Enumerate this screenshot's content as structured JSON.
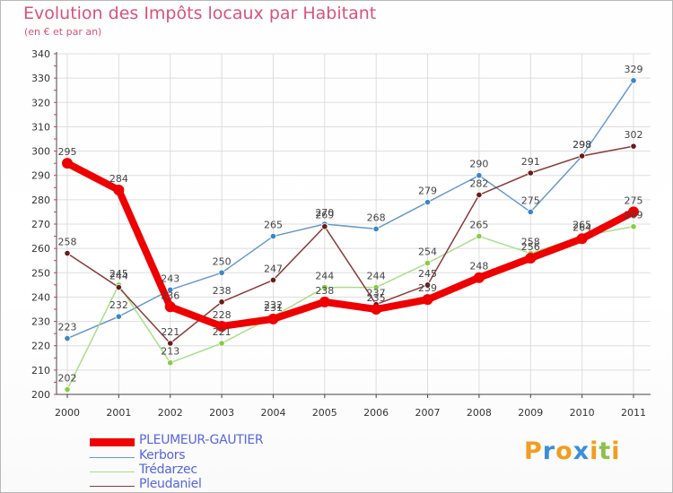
{
  "chart_data": {
    "type": "line",
    "title": "Evolution des Impôts locaux par Habitant",
    "subtitle": "(en € et par an)",
    "x": [
      "2000",
      "2001",
      "2002",
      "2003",
      "2004",
      "2005",
      "2006",
      "2007",
      "2008",
      "2009",
      "2010",
      "2011"
    ],
    "ylim": [
      200,
      340
    ],
    "yticks": [
      200,
      210,
      220,
      230,
      240,
      250,
      260,
      270,
      280,
      290,
      300,
      310,
      320,
      330,
      340
    ],
    "grid": true,
    "legend_position": "bottom-left",
    "series": [
      {
        "name": "PLEUMEUR-GAUTIER",
        "color": "#ee0000",
        "marker": "#ee0000",
        "values": [
          295,
          284,
          236,
          228,
          231,
          238,
          235,
          239,
          248,
          256,
          264,
          275
        ]
      },
      {
        "name": "Kerbors",
        "color": "#6699cc",
        "marker": "#3a85c6",
        "values": [
          223,
          232,
          243,
          250,
          265,
          270,
          268,
          279,
          290,
          275,
          298,
          329
        ]
      },
      {
        "name": "Trédarzec",
        "color": "#aade88",
        "marker": "#88cc44",
        "values": [
          202,
          245,
          213,
          221,
          232,
          244,
          244,
          254,
          265,
          258,
          265,
          269
        ]
      },
      {
        "name": "Pleudaniel",
        "color": "#8b3a3a",
        "marker": "#6a1a1a",
        "values": [
          258,
          244,
          221,
          238,
          247,
          269,
          237,
          245,
          282,
          291,
          298,
          302
        ]
      }
    ]
  },
  "logo": {
    "text": "Proxiti",
    "letters": [
      "P",
      "r",
      "o",
      "x",
      "i",
      "t",
      "i"
    ],
    "colors": [
      "#f39c1f",
      "#3b8fd6",
      "#f39c1f",
      "#3b8fd6",
      "#f39c1f",
      "#8bc34a",
      "#f39c1f"
    ]
  }
}
